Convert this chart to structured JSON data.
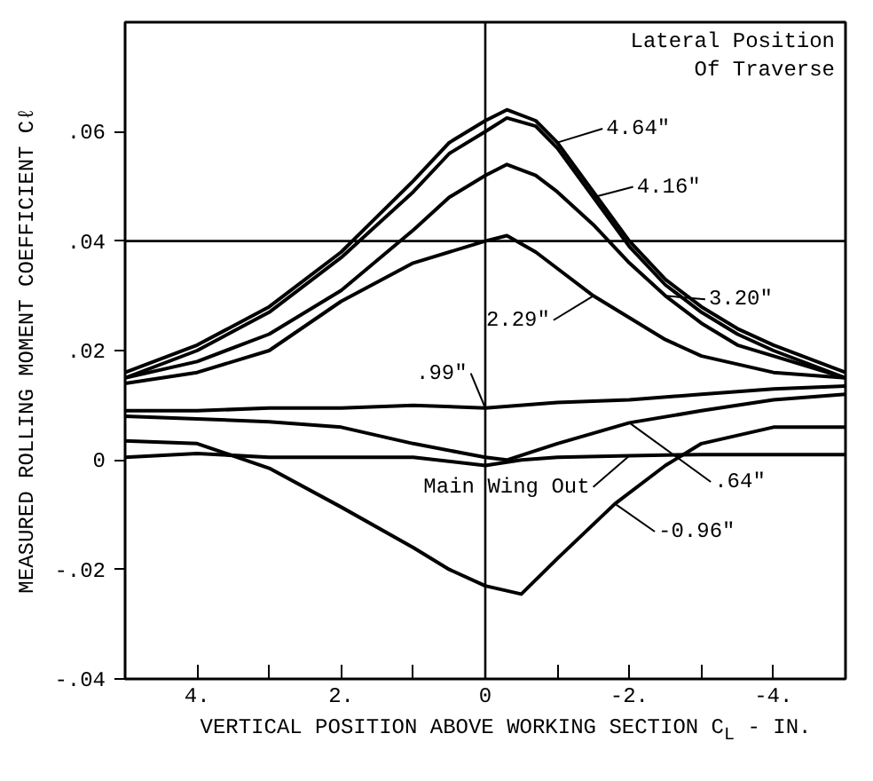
{
  "chart_data": {
    "type": "line",
    "xlabel": "VERTICAL POSITION ABOVE WORKING SECTION C$_{L}$ - IN.",
    "ylabel": "MEASURED ROLLING MOMENT COEFFICIENT Cℓ",
    "legend_title": "Lateral Position Of Traverse",
    "xlim": [
      5,
      -5
    ],
    "ylim": [
      -0.04,
      0.08
    ],
    "xticks": [
      {
        "value": 4,
        "label": "4."
      },
      {
        "value": 3,
        "label": null
      },
      {
        "value": 2,
        "label": "2."
      },
      {
        "value": 1,
        "label": null
      },
      0,
      {
        "value": -1,
        "label": null
      },
      {
        "value": -2,
        "label": "-2."
      },
      {
        "value": -3,
        "label": null
      },
      {
        "value": -4,
        "label": "-4."
      }
    ],
    "yticks": [
      {
        "value": -0.04,
        "label": "-.04"
      },
      {
        "value": -0.02,
        "label": "-.02"
      },
      0,
      {
        "value": 0.02,
        "label": ".02"
      },
      {
        "value": 0.04,
        "label": ".04"
      },
      {
        "value": 0.06,
        "label": ".06"
      }
    ],
    "ref_lines": [
      {
        "axis": "x",
        "value": 0,
        "label": null,
        "color": "#000000"
      },
      {
        "axis": "y",
        "value": 0.04,
        "label": null,
        "color": "#000000"
      }
    ],
    "grid": false,
    "legend": "right",
    "marker": "none",
    "line_style": "solid",
    "series": [
      {
        "name": "4.64\"",
        "color": "#000000",
        "x": [
          5,
          4,
          3,
          2,
          1,
          0.5,
          0,
          -0.3,
          -0.7,
          -1,
          -1.5,
          -2,
          -2.5,
          -3,
          -3.5,
          -4,
          -5
        ],
        "values": [
          0.016,
          0.021,
          0.028,
          0.038,
          0.051,
          0.058,
          0.062,
          0.064,
          0.062,
          0.058,
          0.049,
          0.04,
          0.033,
          0.028,
          0.024,
          0.021,
          0.016
        ]
      },
      {
        "name": "4.16\"",
        "color": "#000000",
        "x": [
          5,
          4,
          3,
          2,
          1,
          0.5,
          0,
          -0.3,
          -0.7,
          -1,
          -1.5,
          -2,
          -2.5,
          -3,
          -3.5,
          -4,
          -5
        ],
        "values": [
          0.015,
          0.02,
          0.027,
          0.037,
          0.049,
          0.056,
          0.06,
          0.0625,
          0.061,
          0.057,
          0.048,
          0.039,
          0.032,
          0.027,
          0.023,
          0.02,
          0.015
        ]
      },
      {
        "name": "3.20\"",
        "color": "#000000",
        "x": [
          5,
          4,
          3,
          2,
          1,
          0.5,
          0,
          -0.3,
          -0.7,
          -1,
          -1.5,
          -2,
          -2.5,
          -3,
          -3.5,
          -4,
          -5
        ],
        "values": [
          0.015,
          0.018,
          0.023,
          0.031,
          0.042,
          0.048,
          0.052,
          0.054,
          0.052,
          0.049,
          0.043,
          0.036,
          0.03,
          0.025,
          0.021,
          0.019,
          0.015
        ]
      },
      {
        "name": "2.29\"",
        "color": "#000000",
        "x": [
          5,
          4,
          3,
          2,
          1,
          0,
          -0.3,
          -0.7,
          -1,
          -1.5,
          -2,
          -2.5,
          -3,
          -4,
          -5
        ],
        "values": [
          0.014,
          0.016,
          0.02,
          0.029,
          0.036,
          0.04,
          0.041,
          0.038,
          0.035,
          0.03,
          0.026,
          0.022,
          0.019,
          0.016,
          0.015
        ]
      },
      {
        "name": ".99\"",
        "color": "#000000",
        "x": [
          5,
          4,
          3,
          2,
          1,
          0,
          -1,
          -2,
          -3,
          -4,
          -5
        ],
        "values": [
          0.009,
          0.009,
          0.0095,
          0.0095,
          0.01,
          0.0095,
          0.0105,
          0.011,
          0.012,
          0.013,
          0.0135
        ]
      },
      {
        "name": ".64\"",
        "color": "#000000",
        "x": [
          5,
          4,
          3,
          2,
          1,
          0,
          -0.3,
          -1,
          -2,
          -3,
          -4,
          -5
        ],
        "values": [
          0.008,
          0.0075,
          0.007,
          0.006,
          0.003,
          0.0005,
          0.0,
          0.003,
          0.0068,
          0.009,
          0.011,
          0.012
        ]
      },
      {
        "name": "Main Wing Out",
        "color": "#000000",
        "x": [
          5,
          4,
          3,
          2,
          1,
          0,
          -0.5,
          -1,
          -2,
          -3,
          -4,
          -5
        ],
        "values": [
          0.0005,
          0.0012,
          0.0005,
          0.0005,
          0.0005,
          -0.001,
          0.0,
          0.0005,
          0.0008,
          0.001,
          0.001,
          0.001
        ]
      },
      {
        "name": "-0.96\"",
        "color": "#000000",
        "x": [
          5,
          4,
          3,
          2,
          1,
          0.5,
          0,
          -0.5,
          -1,
          -1.8,
          -2.5,
          -3,
          -4,
          -5
        ],
        "values": [
          0.0035,
          0.003,
          -0.0015,
          -0.0086,
          -0.016,
          -0.02,
          -0.023,
          -0.0245,
          -0.018,
          -0.008,
          -0.001,
          0.003,
          0.006,
          0.006
        ]
      }
    ]
  }
}
